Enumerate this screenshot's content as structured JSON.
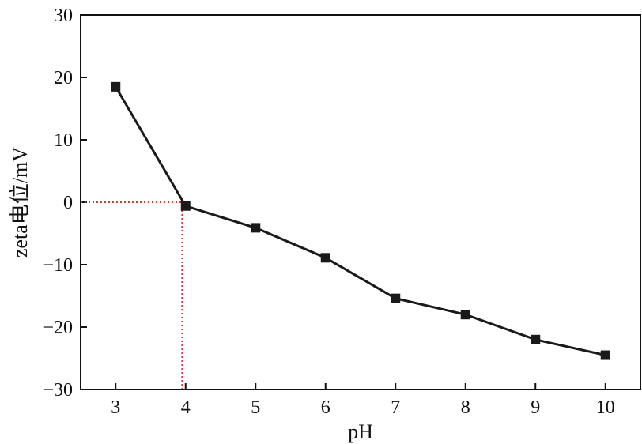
{
  "chart_data": {
    "type": "line",
    "xlabel": "pH",
    "ylabel": "zeta电位/mV",
    "xlim": [
      2.5,
      10.5
    ],
    "ylim": [
      -30,
      30
    ],
    "xticks": [
      3,
      4,
      5,
      6,
      7,
      8,
      9,
      10
    ],
    "yticks": [
      30,
      20,
      10,
      0,
      -10,
      -20,
      -30
    ],
    "ytick_labels": [
      "30",
      "20",
      "10",
      "0",
      "−10",
      "−20",
      "−30"
    ],
    "grid": false,
    "series": [
      {
        "x": [
          3,
          4,
          5,
          6,
          7,
          8,
          9,
          10
        ],
        "y": [
          18.5,
          -0.6,
          -4.1,
          -8.9,
          -15.4,
          -18.0,
          -22.0,
          -24.5
        ],
        "marker": "square",
        "color": "#1a1a1a"
      }
    ],
    "reference_lines": {
      "isoelectric_point_x": 3.95,
      "y": 0,
      "color": "#d9373a",
      "style": "dotted"
    }
  }
}
